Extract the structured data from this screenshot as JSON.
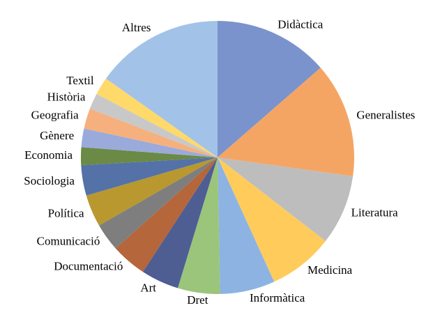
{
  "chart_data": {
    "type": "pie",
    "categories": [
      "Didàctica",
      "Generalistes",
      "Literatura",
      "Medicina",
      "Informàtica",
      "Dret",
      "Art",
      "Documentació",
      "Comunicació",
      "Política",
      "Sociologia",
      "Economia",
      "Gènere",
      "Geografia",
      "Història",
      "Textil",
      "Altres"
    ],
    "values": [
      13.6,
      13.6,
      8.3,
      7.7,
      6.5,
      5.0,
      4.5,
      4.2,
      3.3,
      3.8,
      3.6,
      2.1,
      2.2,
      2.4,
      1.9,
      2.1,
      15.2
    ],
    "colors": [
      "#7b93cc",
      "#f5a563",
      "#bdbdbd",
      "#ffcc5c",
      "#8db3e2",
      "#9bc57a",
      "#4e5e93",
      "#b5663a",
      "#7e7e7e",
      "#b8982f",
      "#5472a8",
      "#6a8a45",
      "#9aaadb",
      "#f5b07e",
      "#c8c8c8",
      "#ffd96a",
      "#a3c2e8"
    ]
  }
}
